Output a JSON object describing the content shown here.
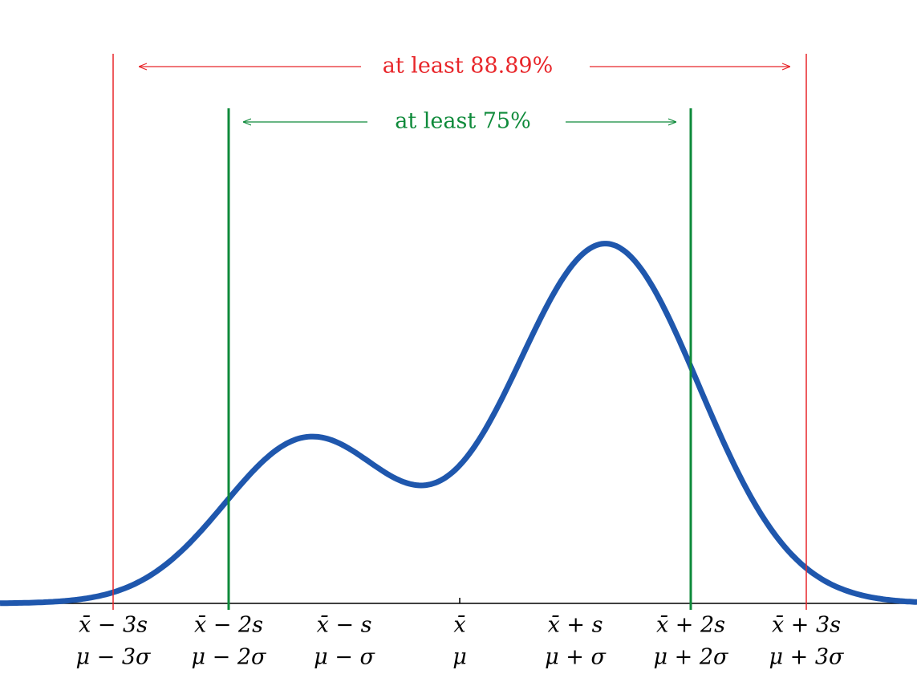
{
  "annotations": {
    "outer": "at least 88.89%",
    "inner": "at least 75%"
  },
  "ticks": [
    {
      "top": "x̄ − 3s",
      "bottom": "μ − 3σ"
    },
    {
      "top": "x̄ − 2s",
      "bottom": "μ − 2σ"
    },
    {
      "top": "x̄ − s",
      "bottom": "μ − σ"
    },
    {
      "top": "x̄",
      "bottom": "μ"
    },
    {
      "top": "x̄ + s",
      "bottom": "μ + σ"
    },
    {
      "top": "x̄ + 2s",
      "bottom": "μ + 2σ"
    },
    {
      "top": "x̄ + 3s",
      "bottom": "μ + 3σ"
    }
  ]
}
